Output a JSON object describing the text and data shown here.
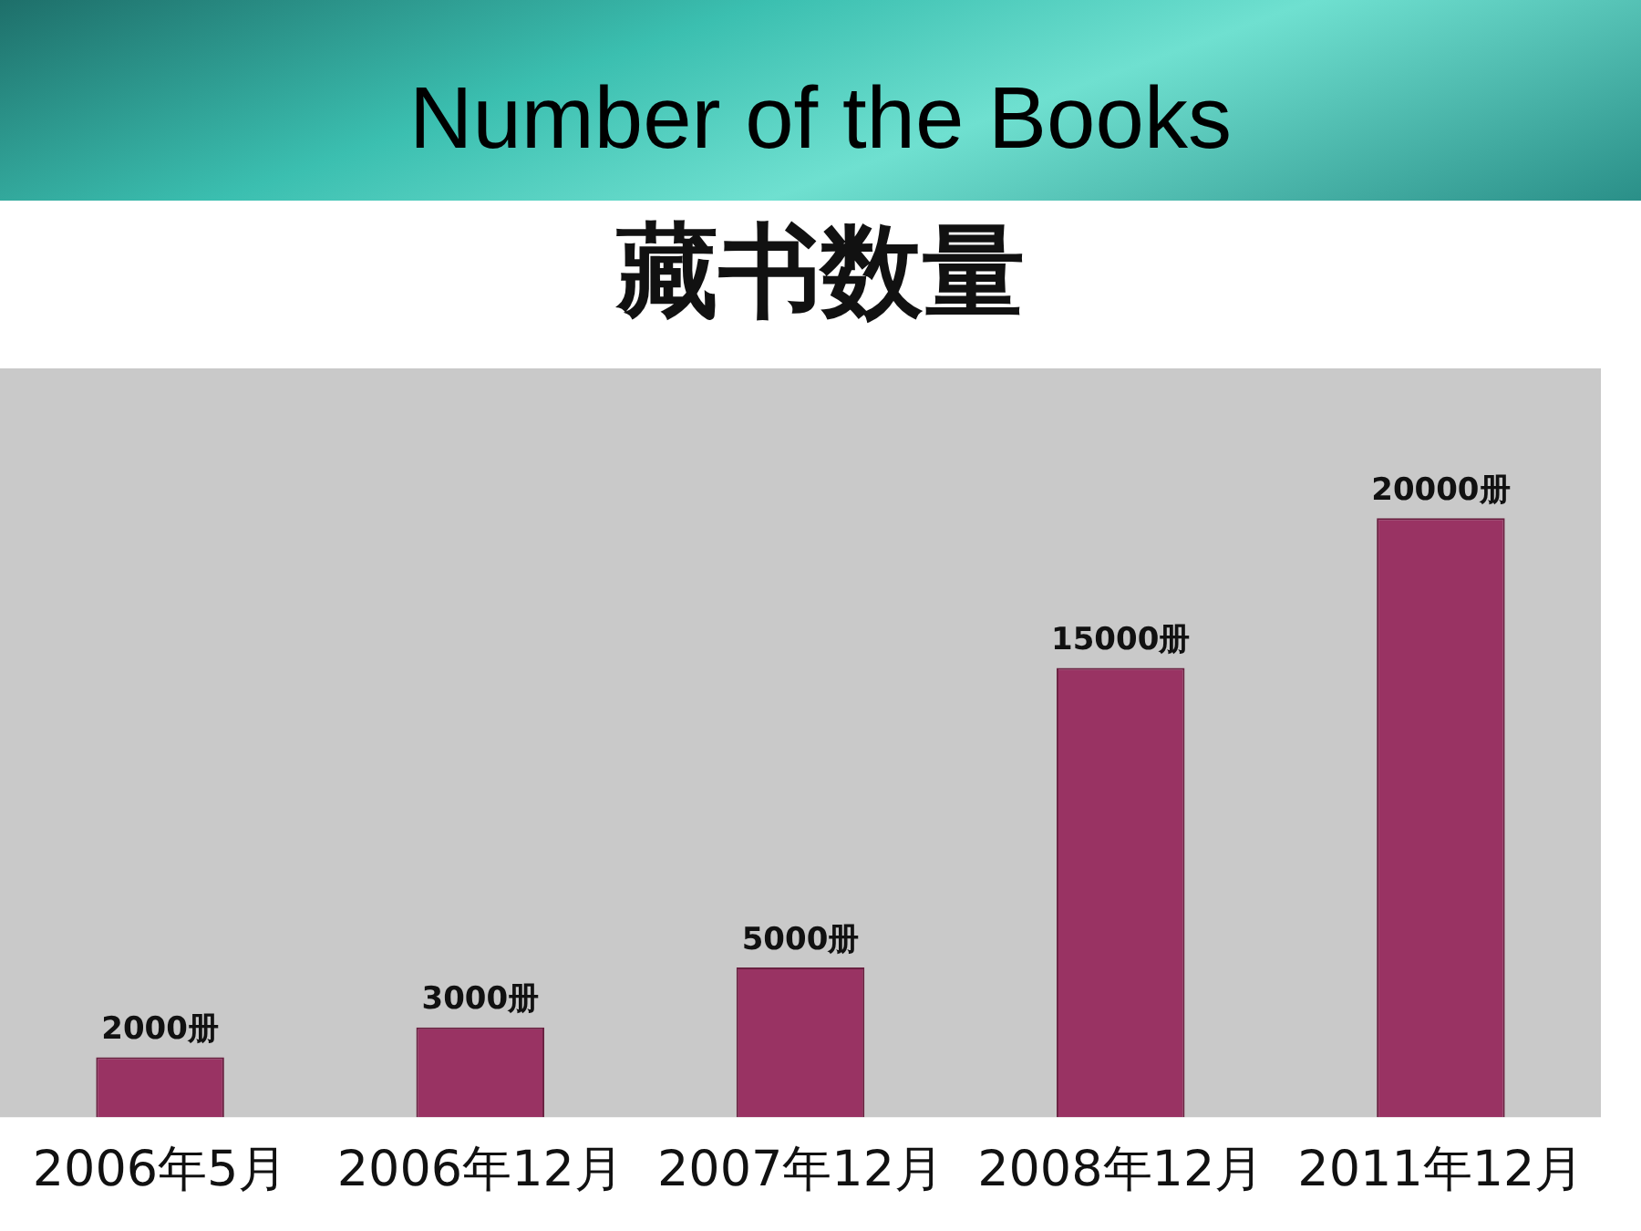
{
  "chart_data": {
    "type": "bar",
    "title": "Number of the Books",
    "subtitle": "藏书数量",
    "categories": [
      "2006年5月",
      "2006年12月",
      "2007年12月",
      "2008年12月",
      "2011年12月"
    ],
    "values": [
      2000,
      3000,
      5000,
      15000,
      20000
    ],
    "value_labels": [
      "2000册",
      "3000册",
      "5000册",
      "15000册",
      "20000册"
    ],
    "color": "#993363",
    "grid": false,
    "legend": false
  }
}
